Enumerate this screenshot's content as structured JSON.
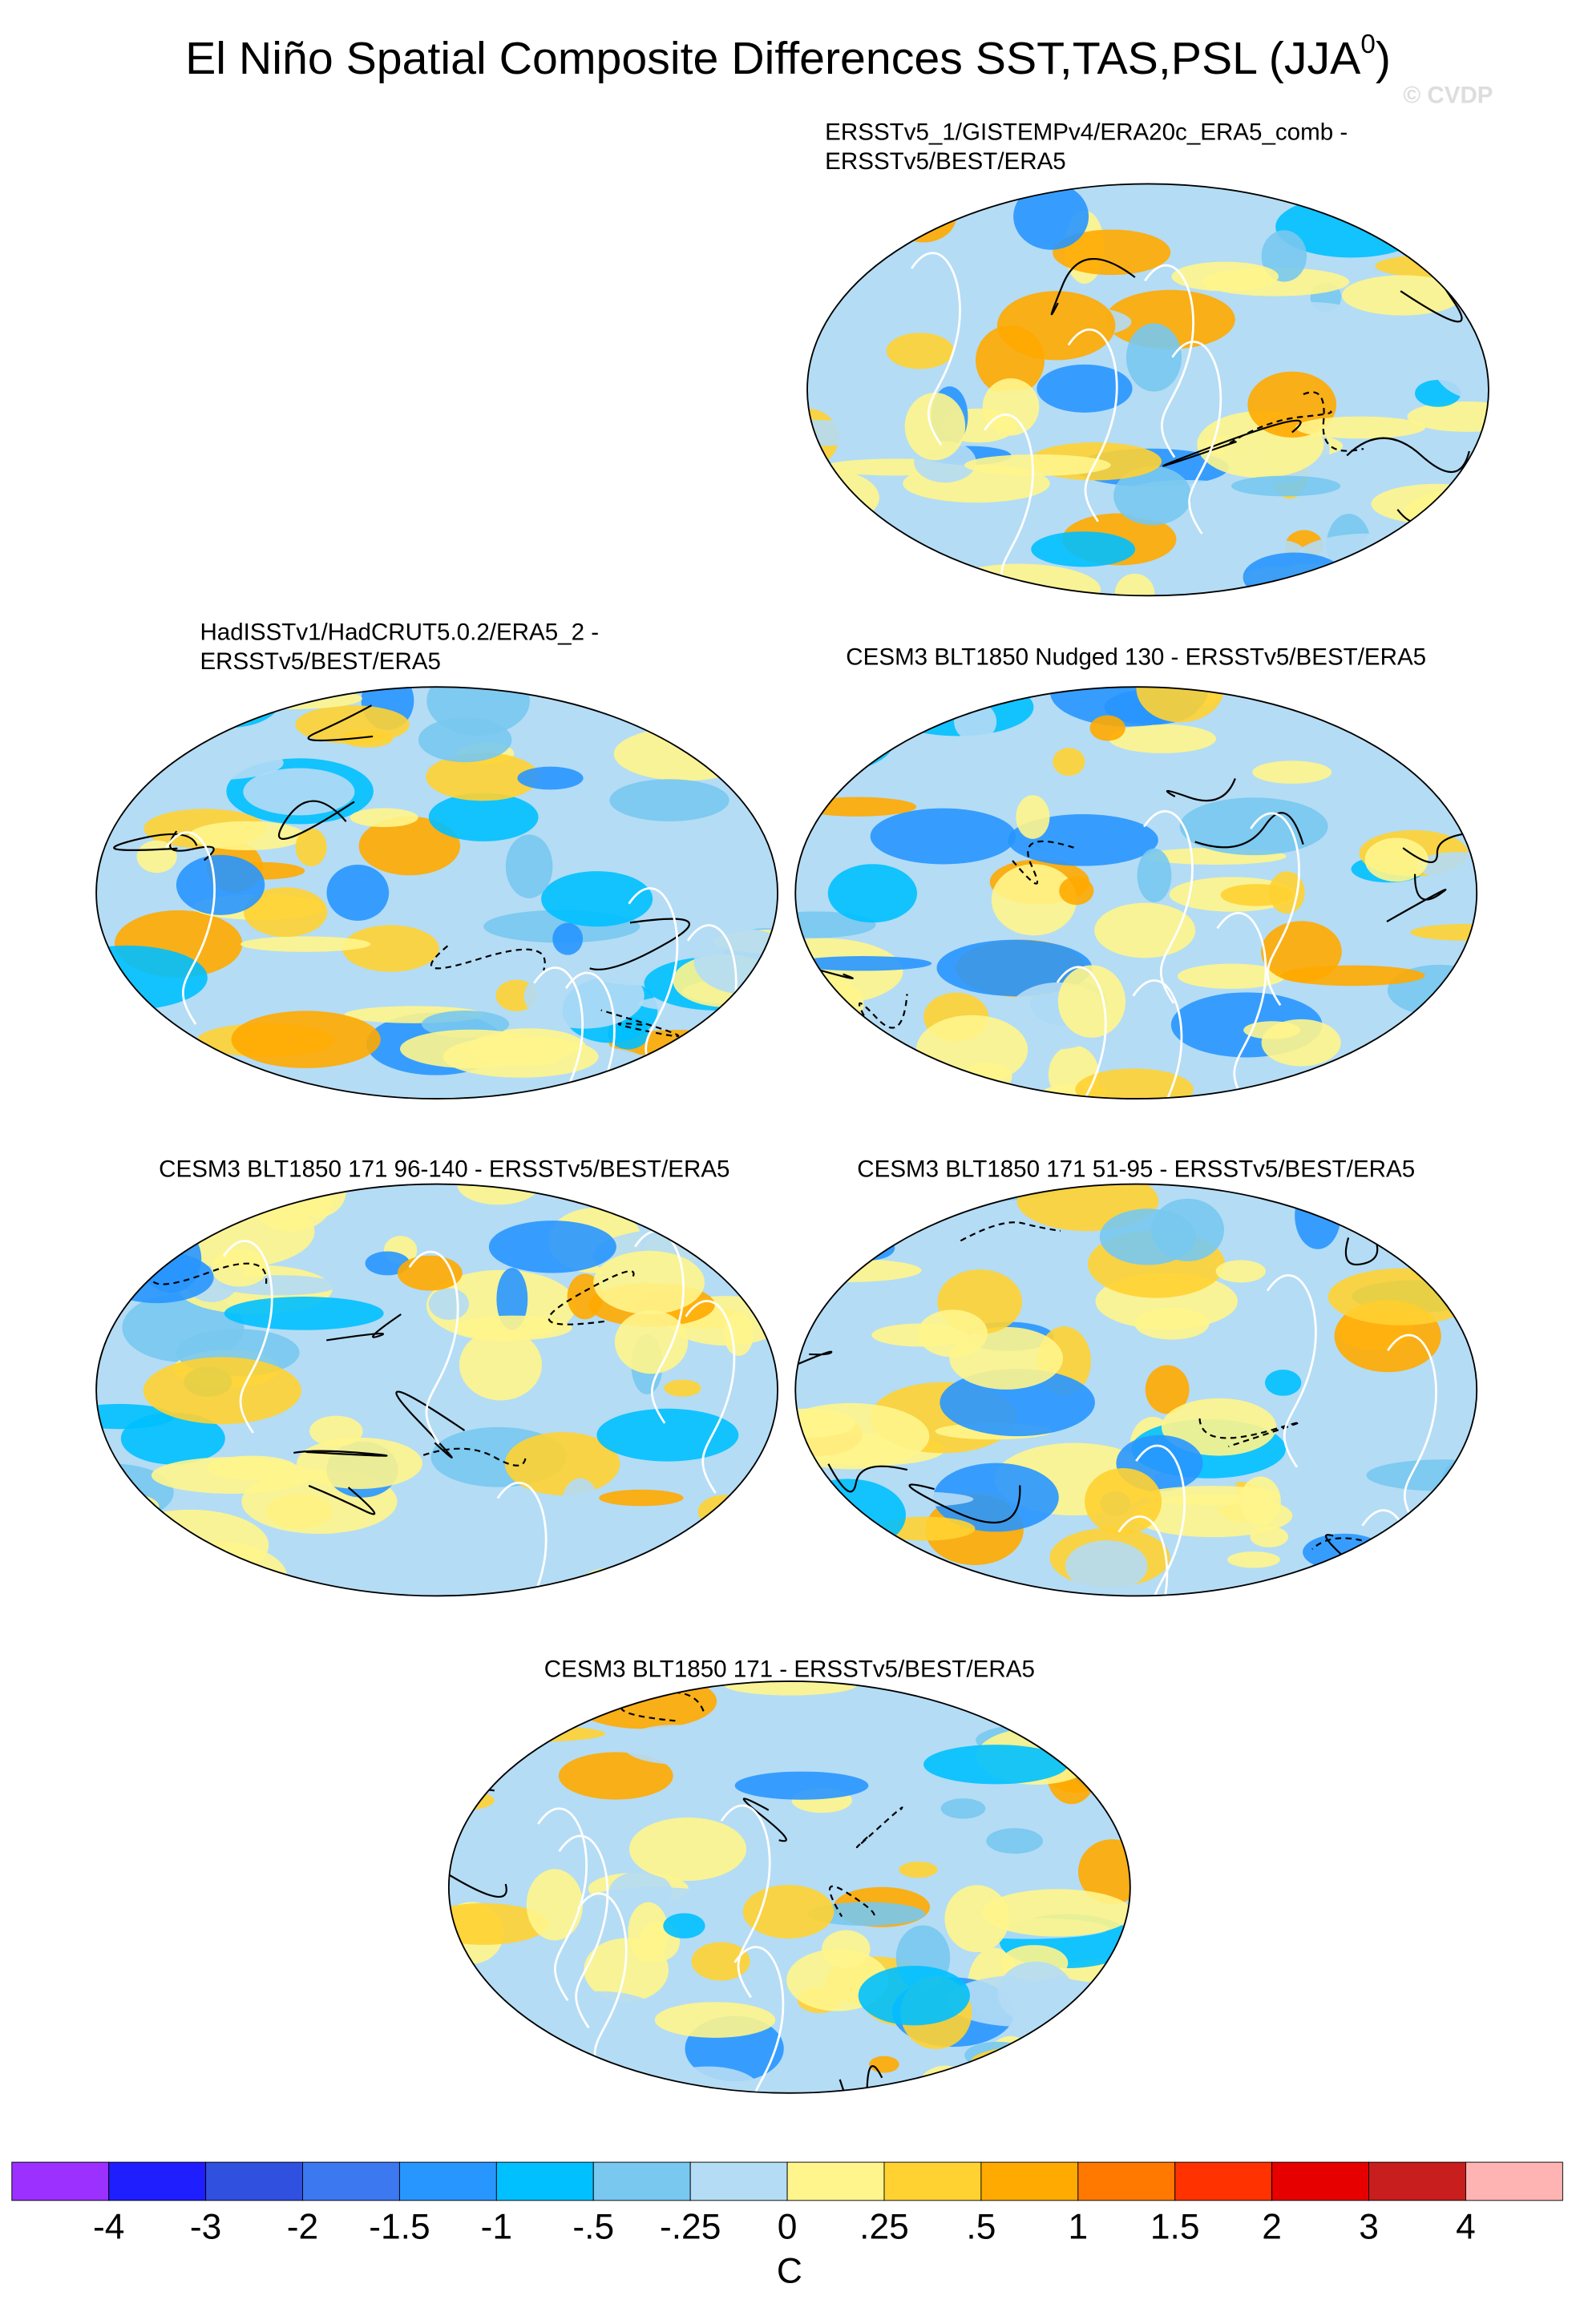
{
  "title": "El Niño Spatial Composite Differences SST,TAS,PSL (JJA",
  "title_superscript": "0",
  "title_end": ")",
  "watermark": "© CVDP",
  "panels": [
    {
      "title_lines": [
        "ERSSTv5_1/GISTEMPv4/ERA20c_ERA5_comb -",
        "ERSSTv5/BEST/ERA5"
      ]
    },
    {
      "title_lines": [
        "HadISSTv1/HadCRUT5.0.2/ERA5_2 -",
        "ERSSTv5/BEST/ERA5"
      ]
    },
    {
      "title_lines": [
        "CESM3 BLT1850 Nudged 130 - ERSSTv5/BEST/ERA5"
      ]
    },
    {
      "title_lines": [
        "CESM3 BLT1850 171 96-140 - ERSSTv5/BEST/ERA5"
      ]
    },
    {
      "title_lines": [
        "CESM3 BLT1850 171 51-95 - ERSSTv5/BEST/ERA5"
      ]
    },
    {
      "title_lines": [
        "CESM3 BLT1850 171 - ERSSTv5/BEST/ERA5"
      ]
    }
  ],
  "colorbar": {
    "colors": [
      "#9b30ff",
      "#1e1eff",
      "#3050e0",
      "#3c78f0",
      "#2896ff",
      "#00c0ff",
      "#78c8f0",
      "#b4dcf5",
      "#fff58c",
      "#ffd232",
      "#ffaa00",
      "#ff7800",
      "#ff3200",
      "#e60000",
      "#c81e1e",
      "#ffb4b4"
    ],
    "labels": [
      "-4",
      "-3",
      "-2",
      "-1.5",
      "-1",
      "-.5",
      "-.25",
      "0",
      ".25",
      ".5",
      "1",
      "1.5",
      "2",
      "3",
      "4"
    ],
    "unit": "C"
  }
}
